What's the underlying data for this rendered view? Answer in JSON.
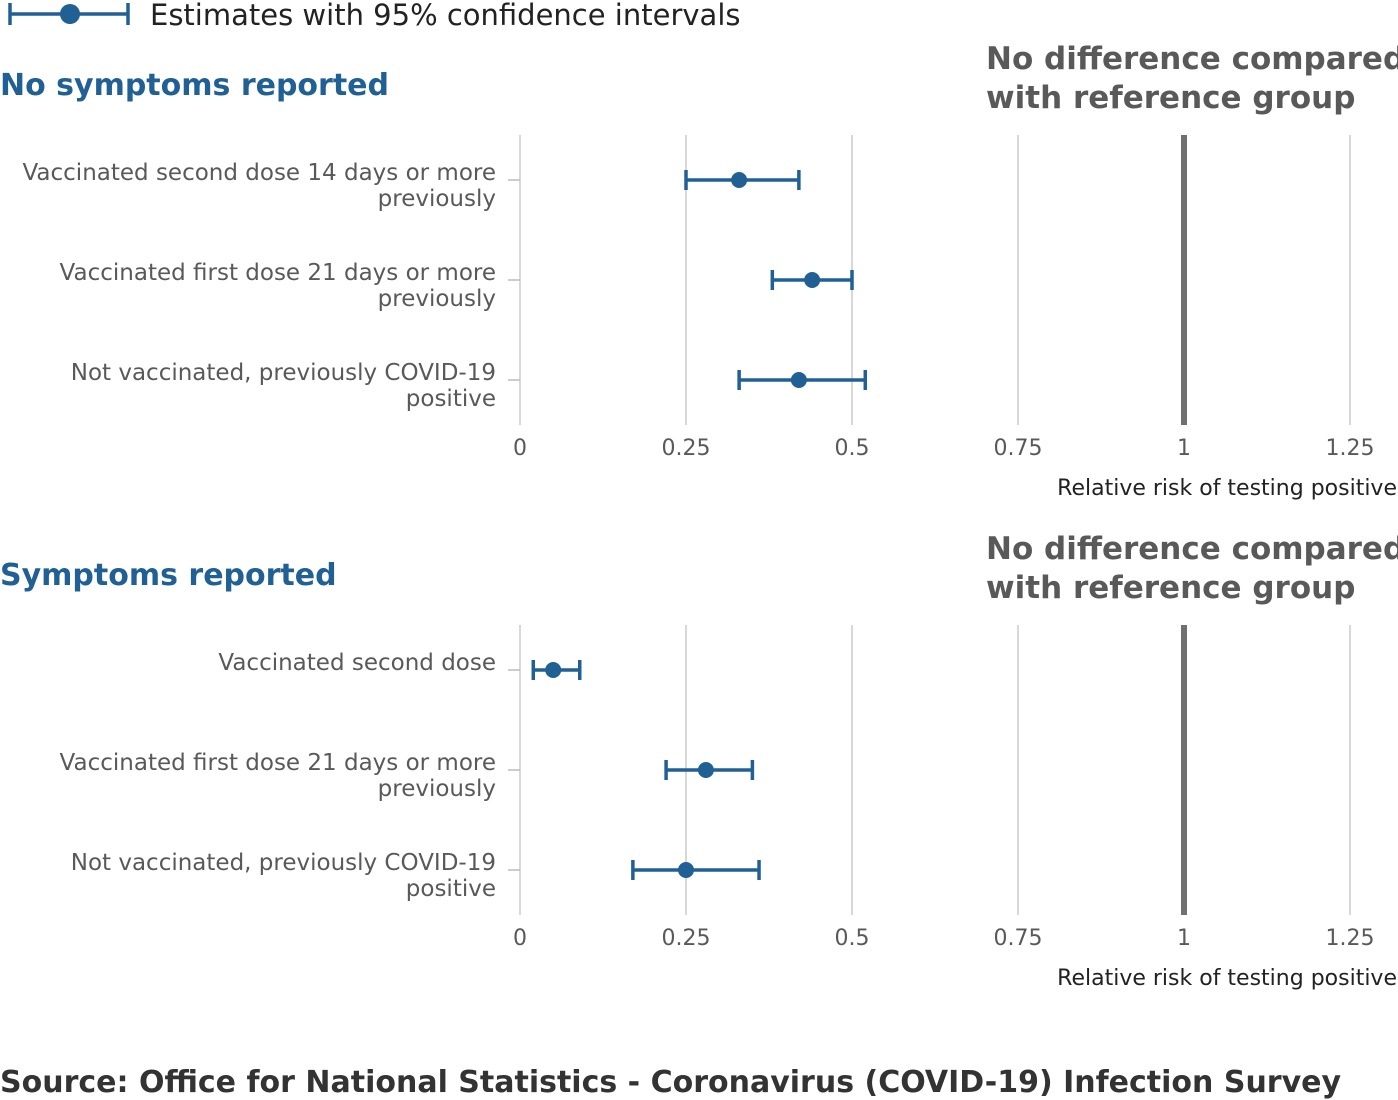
{
  "legend": {
    "label": "Estimates with 95% confidence intervals",
    "color": "#206095"
  },
  "source": "Source: Office for National Statistics - Coronavirus (COVID-19) Infection Survey",
  "colors": {
    "estimate": "#206095",
    "reference_line": "#707070",
    "grid": "#cccccc",
    "text": "#595959"
  },
  "chart_data": [
    {
      "type": "scatter",
      "subtype": "forest-plot",
      "title": "No symptoms reported",
      "reference_label": [
        "No difference compared",
        "with reference group"
      ],
      "reference_value": 1,
      "xlabel": "Relative risk of testing positive",
      "xlim": [
        0,
        1.25
      ],
      "xticks": [
        0,
        0.25,
        0.5,
        0.75,
        1,
        1.25
      ],
      "xtick_labels": [
        "0",
        "0.25",
        "0.5",
        "0.75",
        "1",
        "1.25"
      ],
      "grid": true,
      "categories": [
        [
          "Vaccinated second dose 14 days or more",
          "previously"
        ],
        [
          "Vaccinated first dose 21 days or more",
          "previously"
        ],
        [
          "Not vaccinated, previously COVID-19",
          "positive"
        ]
      ],
      "estimates": [
        0.33,
        0.44,
        0.42
      ],
      "lower": [
        0.25,
        0.38,
        0.33
      ],
      "upper": [
        0.42,
        0.5,
        0.52
      ]
    },
    {
      "type": "scatter",
      "subtype": "forest-plot",
      "title": "Symptoms reported",
      "reference_label": [
        "No difference compared",
        "with reference group"
      ],
      "reference_value": 1,
      "xlabel": "Relative risk of testing positive",
      "xlim": [
        0,
        1.25
      ],
      "xticks": [
        0,
        0.25,
        0.5,
        0.75,
        1,
        1.25
      ],
      "xtick_labels": [
        "0",
        "0.25",
        "0.5",
        "0.75",
        "1",
        "1.25"
      ],
      "grid": true,
      "categories": [
        [
          "Vaccinated second dose"
        ],
        [
          "Vaccinated first dose 21 days or more",
          "previously"
        ],
        [
          "Not vaccinated, previously COVID-19",
          "positive"
        ]
      ],
      "estimates": [
        0.05,
        0.28,
        0.25
      ],
      "lower": [
        0.02,
        0.22,
        0.17
      ],
      "upper": [
        0.09,
        0.35,
        0.36
      ]
    }
  ]
}
